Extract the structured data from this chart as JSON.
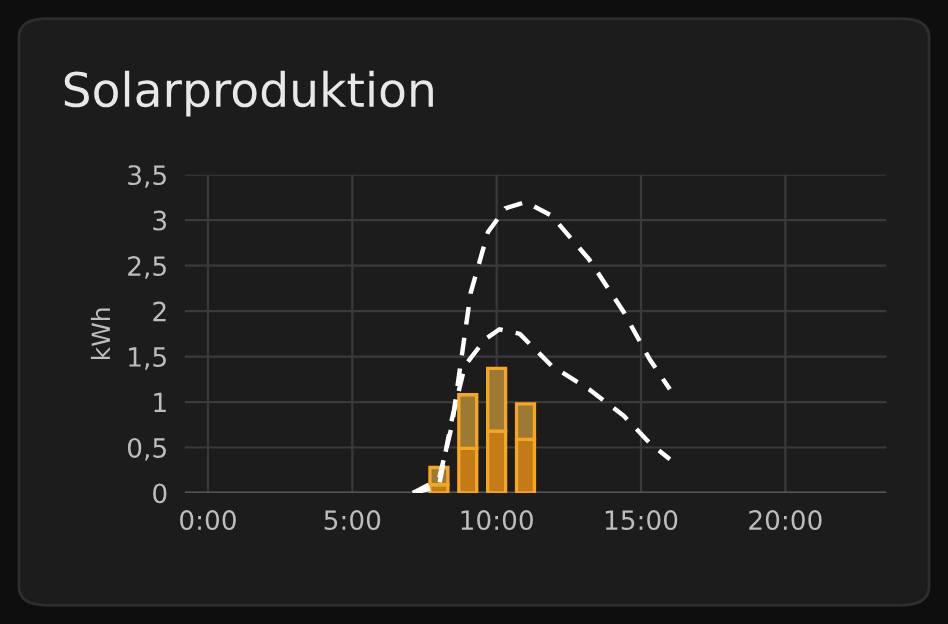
{
  "chart_data": {
    "type": "bar",
    "title": "Solarproduktion",
    "ylabel": "kWh",
    "stacked": true,
    "x": [
      8,
      9,
      10,
      11
    ],
    "series": [
      {
        "color": "#c47a16",
        "values": [
          0.09,
          0.49,
          0.68,
          0.59
        ]
      },
      {
        "color": "#9c7a34",
        "values": [
          0.19,
          0.59,
          0.69,
          0.39
        ]
      },
      {
        "type": "line",
        "color": "#ffffff",
        "line_style": "dashed",
        "x": [
          7.1,
          8.0,
          8.45,
          9.1,
          9.7,
          10.3,
          11.0,
          11.9,
          13.2,
          14.4,
          15.3,
          16.0
        ],
        "values": [
          0,
          0.15,
          0.74,
          2.2,
          2.87,
          3.13,
          3.2,
          3.05,
          2.57,
          1.99,
          1.47,
          1.14
        ]
      },
      {
        "type": "line",
        "color": "#ffffff",
        "line_style": "dashed",
        "x": [
          7.1,
          8.0,
          8.45,
          8.9,
          9.6,
          10.1,
          10.8,
          11.9,
          13.2,
          14.4,
          15.3,
          16.0
        ],
        "values": [
          0,
          0.07,
          0.81,
          1.4,
          1.69,
          1.8,
          1.75,
          1.4,
          1.14,
          0.85,
          0.55,
          0.37
        ]
      }
    ],
    "xlim": [
      -0.8,
      23.5
    ],
    "xticks": [
      {
        "value": 0,
        "label": "0:00"
      },
      {
        "value": 5,
        "label": "5:00"
      },
      {
        "value": 10,
        "label": "10:00"
      },
      {
        "value": 15,
        "label": "15:00"
      },
      {
        "value": 20,
        "label": "20:00"
      }
    ],
    "ylim": [
      0,
      3.5
    ],
    "yticks": [
      0,
      {
        "value": 0.5,
        "label": "0,5"
      },
      1,
      {
        "value": 1.5,
        "label": "1,5"
      },
      2,
      {
        "value": 2.5,
        "label": "2,5"
      },
      3,
      {
        "value": 3.5,
        "label": "3,5"
      }
    ],
    "grid": true
  }
}
